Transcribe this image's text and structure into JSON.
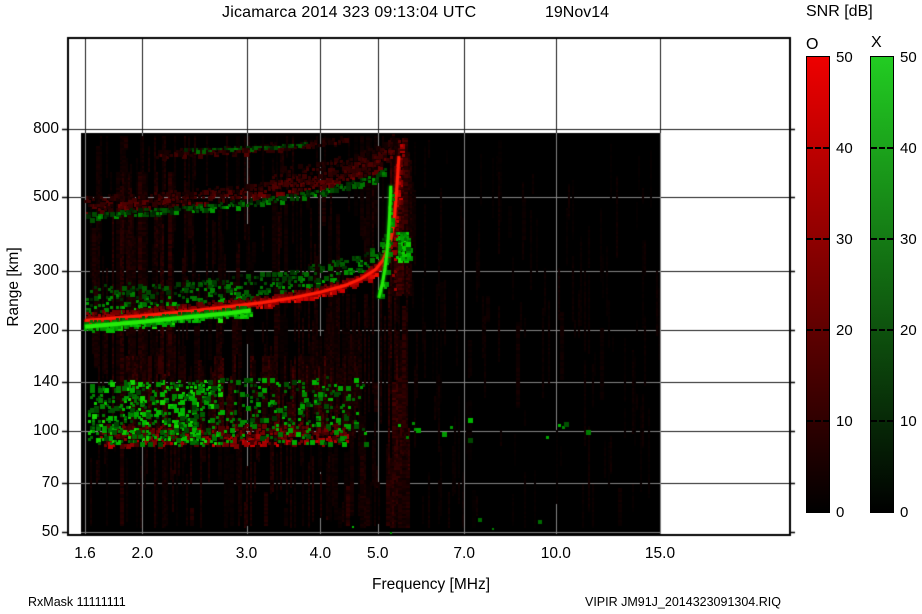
{
  "title": {
    "main": "Jicamarca 2014 323 09:13:04 UTC",
    "date": "19Nov14"
  },
  "footer": {
    "left": "RxMask 11111111",
    "right": "VIPIR  JM91J_2014323091304.RIQ"
  },
  "colorbar": {
    "title": "SNR [dB]",
    "o_label": "O",
    "x_label": "X",
    "ticks": [
      50,
      40,
      30,
      20,
      10,
      0
    ],
    "min": 0,
    "max": 50,
    "o_color": "#ee0000",
    "x_color": "#22cc22",
    "bottom_color": "#000000"
  },
  "chart_data": {
    "type": "heatmap",
    "title": "Jicamarca 2014 323 09:13:04 UTC 19Nov14",
    "xlabel": "Frequency [MHz]",
    "ylabel": "Range [km]",
    "x_scale": "log",
    "y_scale": "log",
    "x_ticks": [
      1.6,
      2.0,
      3.0,
      4.0,
      5.0,
      7.0,
      10.0,
      15.0
    ],
    "y_ticks": [
      50,
      70,
      100,
      140,
      200,
      300,
      500,
      800
    ],
    "x_range": [
      1.6,
      15.0
    ],
    "y_range_frame": [
      50,
      1500
    ],
    "y_range_data": [
      50,
      774
    ],
    "grid": true,
    "background_data": "#000000",
    "grid_color_on_data": "#858585",
    "grid_color_on_margin": "#1a1a1a",
    "legend": [
      {
        "name": "O",
        "color": "#ee0000"
      },
      {
        "name": "X",
        "color": "#22cc22"
      }
    ],
    "features": [
      {
        "id": "bg-noise-left",
        "type": "vstreaks",
        "pol": "O",
        "f": [
          1.62,
          5.6
        ],
        "r": [
          52,
          765
        ],
        "count": 300,
        "v": [
          0.04,
          0.16
        ],
        "len": [
          18,
          150
        ]
      },
      {
        "id": "bg-noise-right",
        "type": "vstreaks",
        "pol": "O",
        "f": [
          5.6,
          14.9
        ],
        "r": [
          52,
          740
        ],
        "count": 130,
        "v": [
          0.03,
          0.09
        ],
        "len": [
          12,
          90
        ]
      },
      {
        "id": "tall-red-streaks",
        "type": "vstreaks",
        "pol": "O",
        "f": [
          1.68,
          2.3
        ],
        "r": [
          110,
          590
        ],
        "count": 22,
        "v": [
          0.09,
          0.22
        ],
        "len": [
          120,
          360
        ]
      },
      {
        "id": "mid-red-streaks",
        "type": "vstreaks",
        "pol": "O",
        "f": [
          3.7,
          5.15
        ],
        "r": [
          115,
          255
        ],
        "count": 45,
        "v": [
          0.05,
          0.17
        ],
        "len": [
          18,
          90
        ]
      },
      {
        "id": "below-trace-red-streaks",
        "type": "vstreaks",
        "pol": "O",
        "f": [
          5.18,
          5.58
        ],
        "r": [
          52,
          268
        ],
        "count": 45,
        "v": [
          0.07,
          0.3
        ],
        "len": [
          30,
          150
        ]
      },
      {
        "id": "o-asymptote-haze",
        "type": "vstreaks",
        "pol": "O",
        "f": [
          5.24,
          5.65
        ],
        "r": [
          255,
          745
        ],
        "count": 55,
        "v": [
          0.08,
          0.3
        ],
        "len": [
          40,
          220
        ]
      },
      {
        "id": "low-alt-red-streaks",
        "type": "vstreaks",
        "pol": "O",
        "f": [
          2.9,
          5.5
        ],
        "r": [
          52,
          94
        ],
        "count": 34,
        "v": [
          0.05,
          0.2
        ],
        "len": [
          18,
          80
        ]
      },
      {
        "id": "e-region-red-haze",
        "type": "vstreaks",
        "pol": "O",
        "f": [
          1.85,
          4.65
        ],
        "r": [
          94,
          168
        ],
        "count": 170,
        "v": [
          0.08,
          0.3
        ],
        "len": [
          14,
          66
        ]
      },
      {
        "id": "second-hop-red-band",
        "type": "band",
        "pol": "O",
        "points": [
          [
            1.6,
            452
          ],
          [
            2.0,
            464
          ],
          [
            2.5,
            479
          ],
          [
            3.0,
            496
          ],
          [
            3.5,
            516
          ],
          [
            4.0,
            538
          ],
          [
            4.4,
            560
          ],
          [
            4.8,
            586
          ],
          [
            5.05,
            612
          ],
          [
            5.2,
            642
          ],
          [
            5.3,
            676
          ]
        ],
        "thick": [
          0,
          52
        ],
        "den": 2.4,
        "v": [
          0.12,
          0.5
        ],
        "cell": 3
      },
      {
        "id": "second-hop-fan",
        "type": "band",
        "pol": "O",
        "points": [
          [
            3.3,
            545
          ],
          [
            3.8,
            568
          ],
          [
            4.3,
            592
          ],
          [
            4.7,
            618
          ],
          [
            5.0,
            648
          ],
          [
            5.2,
            682
          ],
          [
            5.33,
            718
          ]
        ],
        "thick": [
          0,
          68
        ],
        "den": 1.5,
        "v": [
          0.1,
          0.38
        ],
        "cell": 3
      },
      {
        "id": "third-hop-red",
        "type": "band",
        "pol": "O",
        "points": [
          [
            2.1,
            662
          ],
          [
            2.6,
            674
          ],
          [
            3.1,
            688
          ],
          [
            3.6,
            702
          ],
          [
            4.05,
            716
          ],
          [
            4.4,
            730
          ]
        ],
        "thick": [
          0,
          32
        ],
        "den": 1.2,
        "v": [
          0.1,
          0.34
        ],
        "cell": 3
      },
      {
        "id": "third-hop-green",
        "type": "band",
        "pol": "X",
        "points": [
          [
            2.35,
            690
          ],
          [
            2.8,
            699
          ],
          [
            3.3,
            710
          ],
          [
            3.8,
            721
          ]
        ],
        "thick": [
          -3,
          8
        ],
        "den": 0.5,
        "v": [
          0.2,
          0.6
        ],
        "cell": 2
      },
      {
        "id": "second-hop-green-edge",
        "type": "band",
        "pol": "X",
        "points": [
          [
            1.6,
            438
          ],
          [
            2.0,
            449
          ],
          [
            2.5,
            463
          ],
          [
            3.0,
            479
          ],
          [
            3.5,
            497
          ],
          [
            4.0,
            518
          ],
          [
            4.4,
            538
          ],
          [
            4.7,
            556
          ],
          [
            5.0,
            580
          ],
          [
            5.15,
            604
          ]
        ],
        "thick": [
          -5,
          14
        ],
        "den": 1.0,
        "v": [
          0.22,
          0.75
        ],
        "cell": 3
      },
      {
        "id": "e-region-red-band",
        "type": "band",
        "pol": "O",
        "points": [
          [
            1.7,
            97
          ],
          [
            2.3,
            97
          ],
          [
            2.9,
            98
          ],
          [
            3.5,
            98
          ],
          [
            4.1,
            98
          ],
          [
            4.45,
            98
          ]
        ],
        "thick": [
          -6,
          8
        ],
        "den": 3.0,
        "v": [
          0.3,
          0.85
        ],
        "cell": 3
      },
      {
        "id": "e-region-green-cloud",
        "type": "cloud",
        "pol": "X",
        "f": [
          1.62,
          2.7
        ],
        "r": [
          92,
          143
        ],
        "count": 480,
        "v": [
          0.25,
          0.92
        ],
        "cell": 3
      },
      {
        "id": "e-region-green-sparse",
        "type": "cloud",
        "pol": "X",
        "f": [
          2.7,
          4.75
        ],
        "r": [
          92,
          146
        ],
        "count": 230,
        "v": [
          0.2,
          0.8
        ],
        "cell": 3
      },
      {
        "id": "sporadic-green-dots",
        "type": "cloud",
        "pol": "X",
        "f": [
          4.9,
          12.0
        ],
        "r": [
          95,
          110
        ],
        "count": 16,
        "v": [
          0.3,
          0.8
        ],
        "cell": 3
      },
      {
        "id": "bottom-green-dots",
        "type": "cloud",
        "pol": "X",
        "f": [
          3.9,
          9.6
        ],
        "r": [
          50,
          57
        ],
        "count": 5,
        "v": [
          0.4,
          0.8
        ],
        "cell": 2
      },
      {
        "id": "o-asymptote-red",
        "type": "band",
        "pol": "O",
        "points": [
          [
            5.3,
            272
          ],
          [
            5.34,
            334
          ],
          [
            5.37,
            402
          ],
          [
            5.39,
            470
          ],
          [
            5.41,
            542
          ],
          [
            5.43,
            622
          ],
          [
            5.45,
            700
          ],
          [
            5.46,
            748
          ]
        ],
        "thick": [
          -11,
          22
        ],
        "den": 2.8,
        "v": [
          0.3,
          0.92
        ],
        "cell": 3
      },
      {
        "id": "f-trace-green-spread",
        "type": "band",
        "pol": "X",
        "points": [
          [
            1.6,
            220
          ],
          [
            2.2,
            230
          ],
          [
            2.8,
            240
          ],
          [
            3.4,
            252
          ],
          [
            4.0,
            266
          ],
          [
            4.4,
            280
          ],
          [
            4.7,
            294
          ],
          [
            4.95,
            312
          ],
          [
            5.1,
            332
          ],
          [
            5.2,
            358
          ],
          [
            5.27,
            396
          ]
        ],
        "thick": [
          6,
          52
        ],
        "den": 1.7,
        "v": [
          0.2,
          0.85
        ],
        "cell": 3
      },
      {
        "id": "f-trace-o-red",
        "type": "band",
        "pol": "O",
        "points": [
          [
            1.6,
            214
          ],
          [
            2.0,
            221
          ],
          [
            2.4,
            228
          ],
          [
            2.8,
            235
          ],
          [
            3.2,
            242
          ],
          [
            3.6,
            250
          ],
          [
            4.0,
            260
          ],
          [
            4.4,
            272
          ],
          [
            4.7,
            286
          ],
          [
            4.95,
            303
          ],
          [
            5.1,
            323
          ],
          [
            5.2,
            349
          ],
          [
            5.28,
            386
          ],
          [
            5.34,
            442
          ],
          [
            5.38,
            520
          ],
          [
            5.41,
            600
          ],
          [
            5.43,
            662
          ]
        ],
        "thick": [
          -4,
          13
        ],
        "den": 3.2,
        "v": [
          0.5,
          1.0
        ],
        "cell": 3,
        "core": 3
      },
      {
        "id": "x-asymptote-green",
        "type": "band",
        "pol": "X",
        "points": [
          [
            5.02,
            250
          ],
          [
            5.1,
            280
          ],
          [
            5.16,
            318
          ],
          [
            5.2,
            362
          ],
          [
            5.23,
            425
          ],
          [
            5.25,
            488
          ],
          [
            5.26,
            540
          ]
        ],
        "thick": [
          -7,
          15
        ],
        "den": 2.6,
        "v": [
          0.5,
          1.0
        ],
        "cell": 3,
        "core": 3
      },
      {
        "id": "x-mode-blob-green",
        "type": "cloud",
        "pol": "X",
        "f": [
          5.38,
          5.63
        ],
        "r": [
          326,
          396
        ],
        "count": 110,
        "v": [
          0.4,
          0.95
        ],
        "cell": 3
      },
      {
        "id": "f-trace-x-green",
        "type": "band",
        "pol": "X",
        "points": [
          [
            1.6,
            205
          ],
          [
            2.0,
            212
          ],
          [
            2.4,
            219
          ],
          [
            2.8,
            225
          ],
          [
            3.05,
            229
          ]
        ],
        "thick": [
          -5,
          9
        ],
        "den": 3.2,
        "v": [
          0.55,
          1.0
        ],
        "cell": 3,
        "core": 4
      }
    ]
  }
}
